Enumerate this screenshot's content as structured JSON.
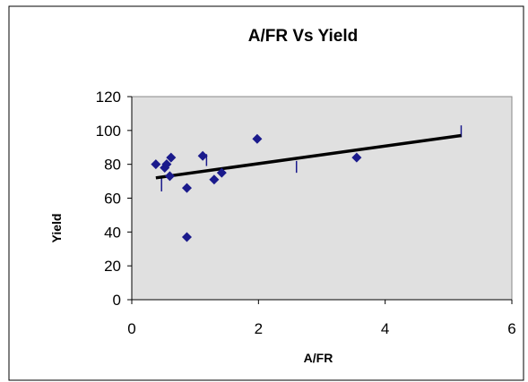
{
  "chart_data": {
    "type": "scatter",
    "title": "A/FR Vs Yield",
    "xlabel": "A/FR",
    "ylabel": "Yield",
    "xlim": [
      0,
      6
    ],
    "ylim": [
      0,
      120
    ],
    "x_ticks": [
      "0",
      "2",
      "4",
      "6"
    ],
    "y_ticks": [
      "0",
      "20",
      "40",
      "60",
      "80",
      "100",
      "120"
    ],
    "grid": false,
    "legend": "none",
    "series": [
      {
        "marker": "diamond",
        "color": "#1a1a8c",
        "points": [
          {
            "x": 0.38,
            "y": 80
          },
          {
            "x": 0.52,
            "y": 78
          },
          {
            "x": 0.55,
            "y": 80
          },
          {
            "x": 0.6,
            "y": 73
          },
          {
            "x": 0.62,
            "y": 84
          },
          {
            "x": 0.87,
            "y": 66
          },
          {
            "x": 0.87,
            "y": 37
          },
          {
            "x": 1.12,
            "y": 85
          },
          {
            "x": 1.3,
            "y": 71
          },
          {
            "x": 1.42,
            "y": 75
          },
          {
            "x": 1.98,
            "y": 95
          },
          {
            "x": 3.55,
            "y": 84
          }
        ]
      }
    ],
    "trendline": {
      "type": "linear",
      "color": "#000000",
      "start": {
        "x": 0.38,
        "y": 72
      },
      "end": {
        "x": 5.2,
        "y": 97
      }
    },
    "error_bars": [
      {
        "x": 0.47,
        "y_low": 64,
        "y_high": 72
      },
      {
        "x": 1.18,
        "y_low": 79,
        "y_high": 86
      },
      {
        "x": 2.6,
        "y_low": 75,
        "y_high": 82
      },
      {
        "x": 5.2,
        "y_low": 96,
        "y_high": 103
      }
    ],
    "colors": {
      "plot_background": "#e0e0e0",
      "marker": "#1a1a8c",
      "trendline": "#000000"
    }
  }
}
